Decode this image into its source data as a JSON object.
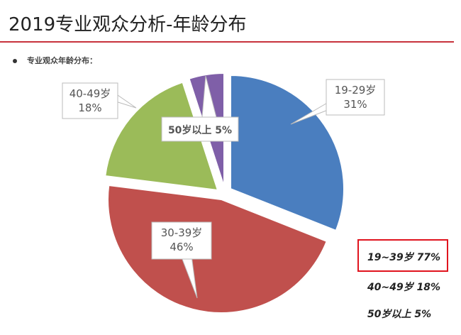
{
  "header": {
    "title": "2019专业观众分析-年龄分布",
    "subtitle": "专业观众年龄分布："
  },
  "chart_data": {
    "type": "pie",
    "title": "",
    "slices": [
      {
        "label": "19-29岁",
        "value": 31,
        "display": "31%",
        "color": "#4a7ebf"
      },
      {
        "label": "30-39岁",
        "value": 46,
        "display": "46%",
        "color": "#c0504d"
      },
      {
        "label": "40-49岁",
        "value": 18,
        "display": "18%",
        "color": "#9bbb59"
      },
      {
        "label": "50岁以上",
        "value": 5,
        "display": "5%",
        "color": "#7f5fa8"
      }
    ],
    "callout_50": "50岁以上 5%",
    "summary": [
      {
        "text": "19~39岁 77%",
        "highlighted": true,
        "highlight_color": "#e0141e"
      },
      {
        "text": "40~49岁 18%",
        "highlighted": false
      },
      {
        "text": "50岁以上 5%",
        "highlighted": false
      }
    ]
  }
}
